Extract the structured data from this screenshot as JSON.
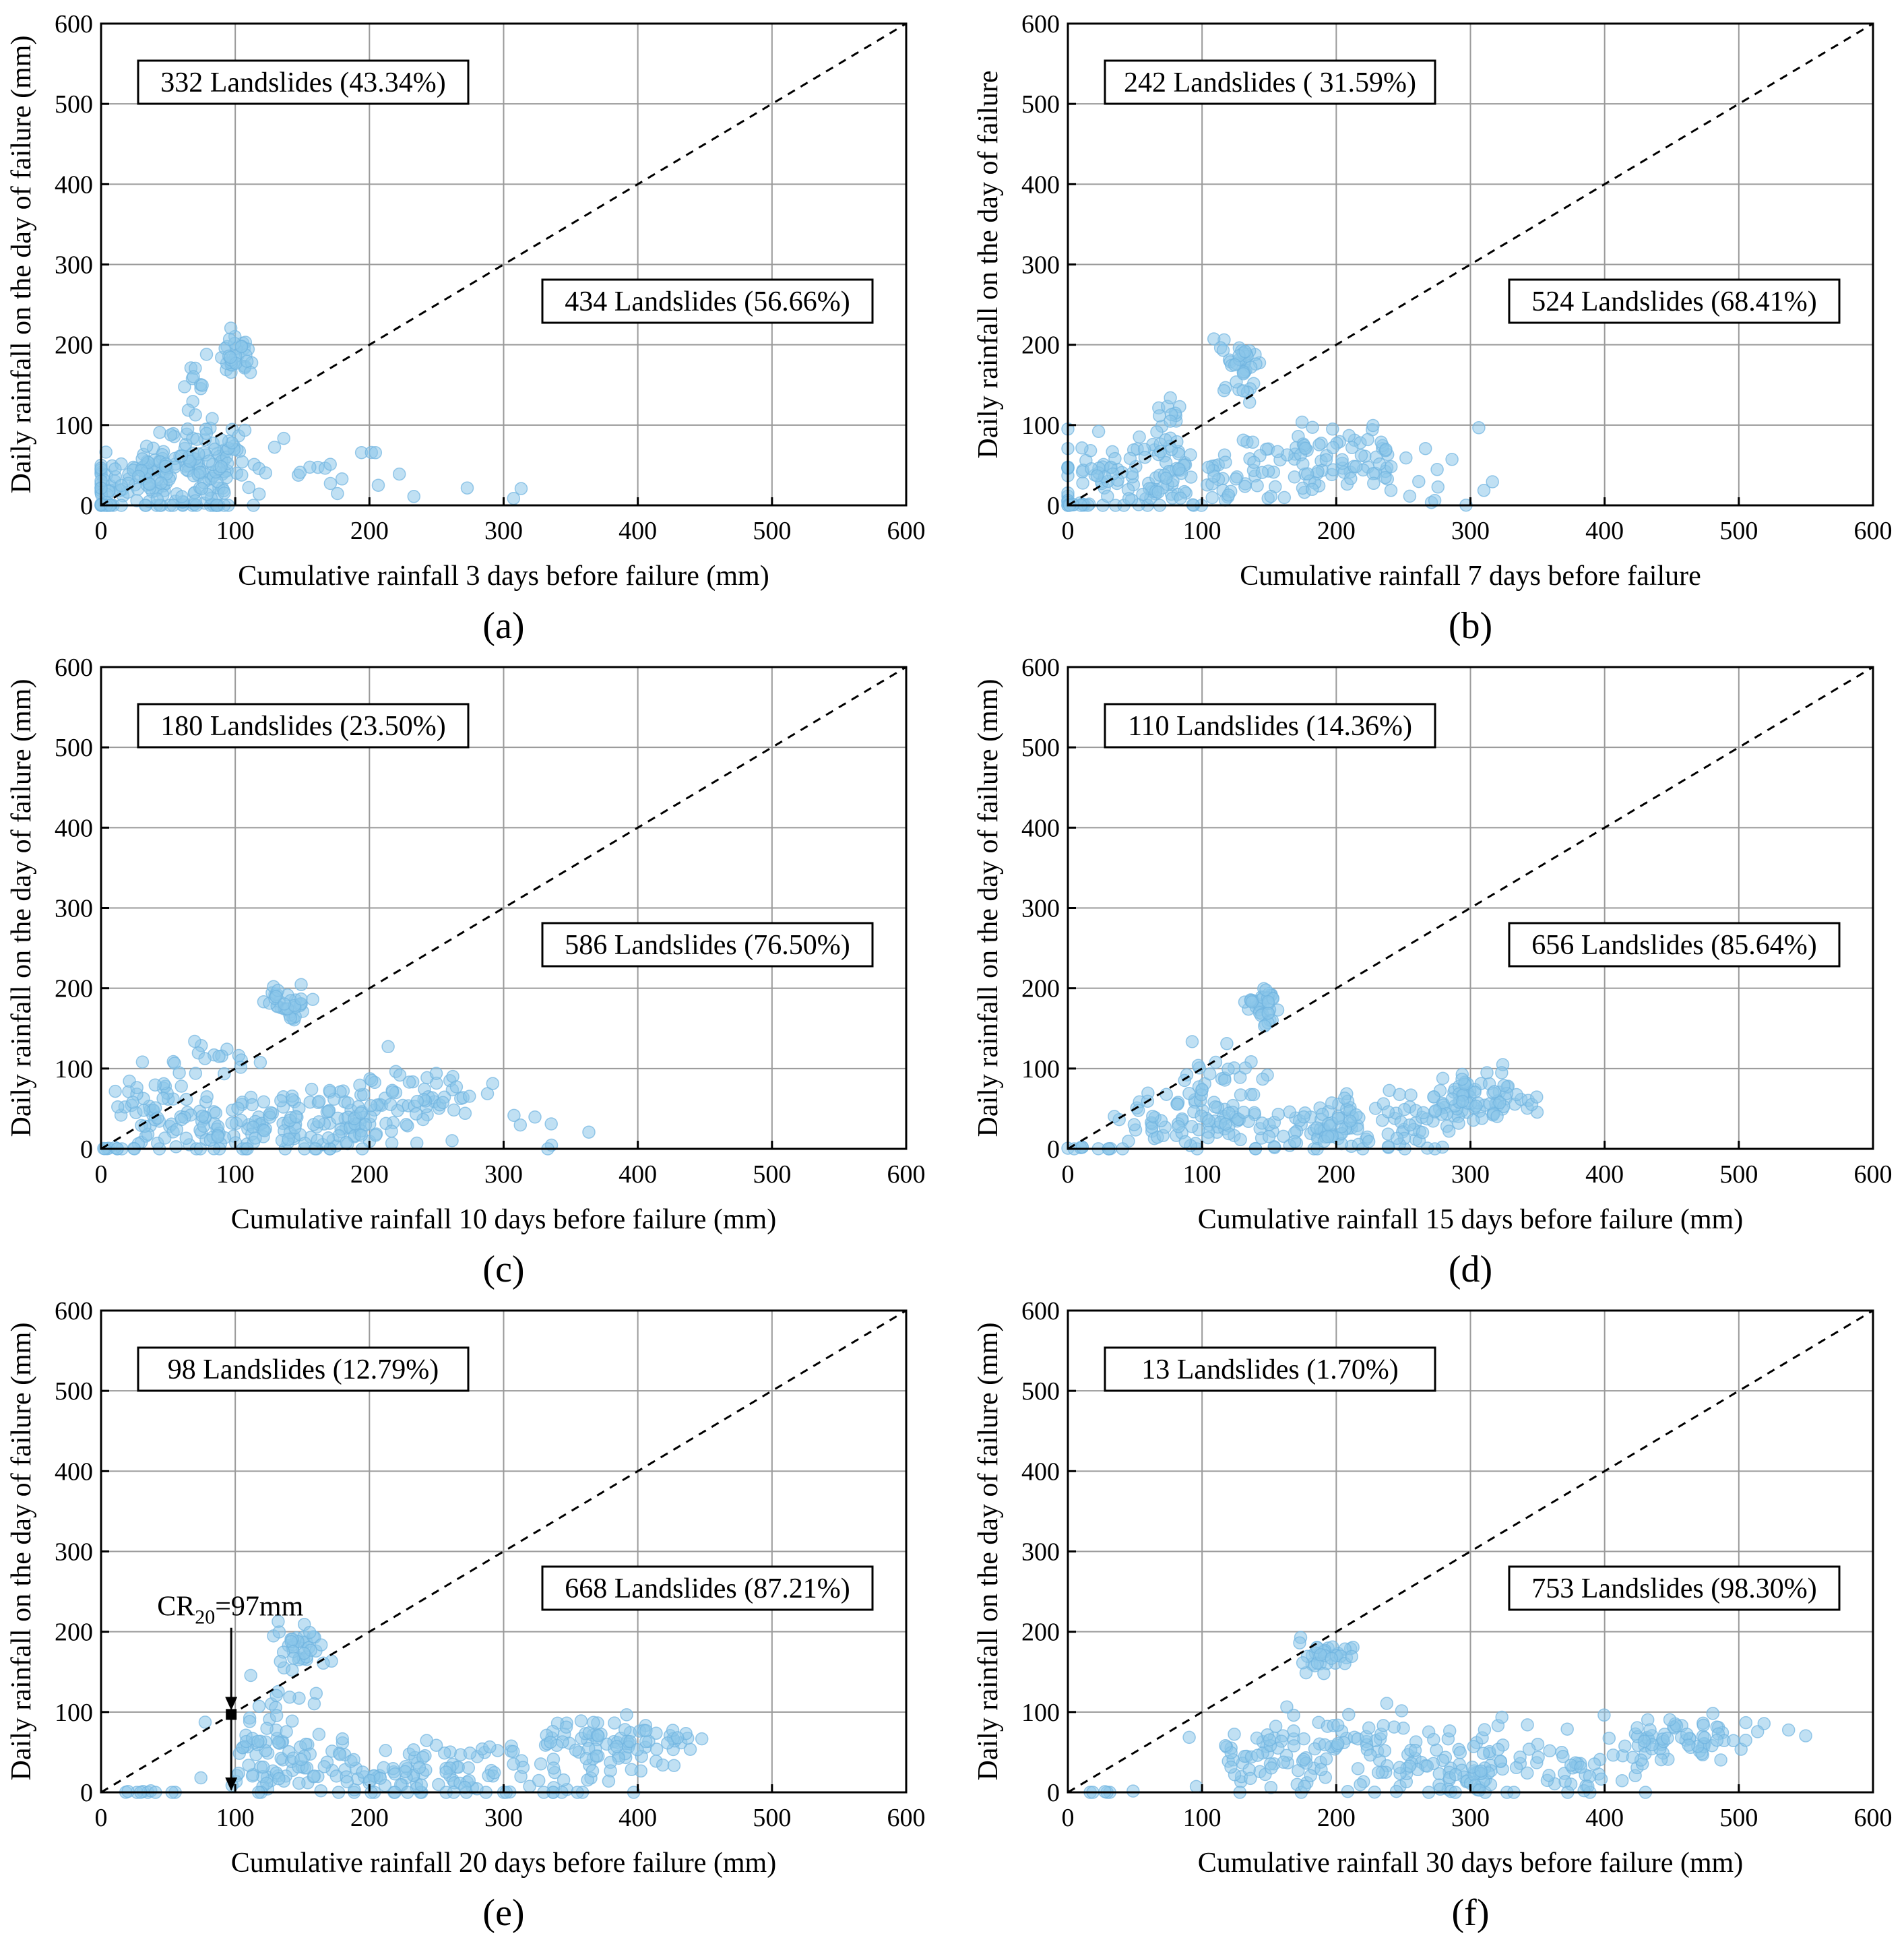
{
  "figure": {
    "colors": {
      "point_fill": "#8cc7ea",
      "point_stroke": "#6fb3df",
      "threshold": "#000000"
    }
  },
  "chart_data": [
    {
      "id": "a",
      "type": "scatter",
      "panel_label": "(a)",
      "xlabel": "Cumulative rainfall 3 days before failure (mm)",
      "ylabel": "Daily rainfall on the day of failure (mm)",
      "xlim": [
        0,
        600
      ],
      "ylim": [
        0,
        600
      ],
      "xticks": [
        0,
        100,
        200,
        300,
        400,
        500,
        600
      ],
      "yticks": [
        0,
        100,
        200,
        300,
        400,
        500,
        600
      ],
      "grid": true,
      "reference_line": {
        "from": [
          0,
          0
        ],
        "to": [
          600,
          600
        ],
        "style": "dashed"
      },
      "annotations": [
        {
          "text": "332 Landslides (43.34%)",
          "region": "above line"
        },
        {
          "text": "434 Landslides (56.66%)",
          "region": "below line"
        }
      ],
      "clusters": [
        {
          "cx": 40,
          "cy": 35,
          "sx": 30,
          "sy": 25,
          "n": 150
        },
        {
          "cx": 85,
          "cy": 50,
          "sx": 18,
          "sy": 25,
          "n": 70
        },
        {
          "cx": 100,
          "cy": 185,
          "sx": 6,
          "sy": 12,
          "n": 35
        },
        {
          "cx": 70,
          "cy": 145,
          "sx": 5,
          "sy": 20,
          "n": 12
        },
        {
          "cx": 180,
          "cy": 55,
          "sx": 30,
          "sy": 25,
          "n": 14
        },
        {
          "cx": 260,
          "cy": 20,
          "sx": 25,
          "sy": 15,
          "n": 6
        },
        {
          "cx": 10,
          "cy": 0,
          "sx": 10,
          "sy": 1,
          "n": 12
        }
      ]
    },
    {
      "id": "b",
      "type": "scatter",
      "panel_label": "(b)",
      "xlabel": "Cumulative rainfall 7 days before failure",
      "ylabel": "Daily rainfall on the day of failure",
      "xlim": [
        0,
        600
      ],
      "ylim": [
        0,
        600
      ],
      "xticks": [
        0,
        100,
        200,
        300,
        400,
        500,
        600
      ],
      "yticks": [
        0,
        100,
        200,
        300,
        400,
        500,
        600
      ],
      "grid": true,
      "reference_line": {
        "from": [
          0,
          0
        ],
        "to": [
          600,
          600
        ],
        "style": "dashed"
      },
      "annotations": [
        {
          "text": "242 Landslides ( 31.59%)",
          "region": "above line"
        },
        {
          "text": "524 Landslides (68.41%)",
          "region": "below line"
        }
      ],
      "clusters": [
        {
          "cx": 50,
          "cy": 40,
          "sx": 35,
          "sy": 25,
          "n": 120
        },
        {
          "cx": 130,
          "cy": 175,
          "sx": 8,
          "sy": 18,
          "n": 40
        },
        {
          "cx": 200,
          "cy": 60,
          "sx": 35,
          "sy": 22,
          "n": 80
        },
        {
          "cx": 130,
          "cy": 30,
          "sx": 25,
          "sy": 25,
          "n": 40
        },
        {
          "cx": 75,
          "cy": 115,
          "sx": 8,
          "sy": 8,
          "n": 10
        },
        {
          "cx": 300,
          "cy": 15,
          "sx": 30,
          "sy": 15,
          "n": 8
        },
        {
          "cx": 5,
          "cy": 0,
          "sx": 5,
          "sy": 1,
          "n": 10
        }
      ]
    },
    {
      "id": "c",
      "type": "scatter",
      "panel_label": "(c)",
      "xlabel": "Cumulative rainfall 10 days before failure (mm)",
      "ylabel": "Daily rainfall on the day of failure (mm)",
      "xlim": [
        0,
        600
      ],
      "ylim": [
        0,
        600
      ],
      "xticks": [
        0,
        100,
        200,
        300,
        400,
        500,
        600
      ],
      "yticks": [
        0,
        100,
        200,
        300,
        400,
        500,
        600
      ],
      "grid": true,
      "reference_line": {
        "from": [
          0,
          0
        ],
        "to": [
          600,
          600
        ],
        "style": "dashed"
      },
      "annotations": [
        {
          "text": "180 Landslides (23.50%)",
          "region": "above line"
        },
        {
          "text": "586 Landslides (76.50%)",
          "region": "below line"
        }
      ],
      "clusters": [
        {
          "cx": 40,
          "cy": 60,
          "sx": 15,
          "sy": 25,
          "n": 40
        },
        {
          "cx": 140,
          "cy": 180,
          "sx": 8,
          "sy": 12,
          "n": 35
        },
        {
          "cx": 160,
          "cy": 30,
          "sx": 40,
          "sy": 20,
          "n": 120
        },
        {
          "cx": 230,
          "cy": 65,
          "sx": 30,
          "sy": 18,
          "n": 60
        },
        {
          "cx": 90,
          "cy": 110,
          "sx": 15,
          "sy": 15,
          "n": 15
        },
        {
          "cx": 80,
          "cy": 25,
          "sx": 25,
          "sy": 20,
          "n": 50
        },
        {
          "cx": 320,
          "cy": 20,
          "sx": 25,
          "sy": 12,
          "n": 7
        },
        {
          "cx": 15,
          "cy": 0,
          "sx": 10,
          "sy": 1,
          "n": 10
        }
      ]
    },
    {
      "id": "d",
      "type": "scatter",
      "panel_label": "(d)",
      "xlabel": "Cumulative rainfall 15 days before failure (mm)",
      "ylabel": "Daily rainfall on the day of failure (mm)",
      "xlim": [
        0,
        600
      ],
      "ylim": [
        0,
        600
      ],
      "xticks": [
        0,
        100,
        200,
        300,
        400,
        500,
        600
      ],
      "yticks": [
        0,
        100,
        200,
        300,
        400,
        500,
        600
      ],
      "grid": true,
      "reference_line": {
        "from": [
          0,
          0
        ],
        "to": [
          600,
          600
        ],
        "style": "dashed"
      },
      "annotations": [
        {
          "text": "110 Landslides (14.36%)",
          "region": "above line"
        },
        {
          "text": "656 Landslides (85.64%)",
          "region": "below line"
        }
      ],
      "clusters": [
        {
          "cx": 100,
          "cy": 35,
          "sx": 30,
          "sy": 20,
          "n": 80
        },
        {
          "cx": 145,
          "cy": 175,
          "sx": 7,
          "sy": 14,
          "n": 35
        },
        {
          "cx": 200,
          "cy": 30,
          "sx": 35,
          "sy": 20,
          "n": 90
        },
        {
          "cx": 310,
          "cy": 65,
          "sx": 25,
          "sy": 15,
          "n": 70
        },
        {
          "cx": 110,
          "cy": 100,
          "sx": 20,
          "sy": 25,
          "n": 25
        },
        {
          "cx": 260,
          "cy": 40,
          "sx": 30,
          "sy": 25,
          "n": 40
        },
        {
          "cx": 15,
          "cy": 0,
          "sx": 10,
          "sy": 1,
          "n": 10
        }
      ]
    },
    {
      "id": "e",
      "type": "scatter",
      "panel_label": "(e)",
      "xlabel": "Cumulative rainfall 20 days before failure (mm)",
      "ylabel": "Daily rainfall on the day of failure (mm)",
      "xlim": [
        0,
        600
      ],
      "ylim": [
        0,
        600
      ],
      "xticks": [
        0,
        100,
        200,
        300,
        400,
        500,
        600
      ],
      "yticks": [
        0,
        100,
        200,
        300,
        400,
        500,
        600
      ],
      "grid": true,
      "reference_line": {
        "from": [
          0,
          0
        ],
        "to": [
          600,
          600
        ],
        "style": "dashed"
      },
      "annotations": [
        {
          "text": "98 Landslides (12.79%)",
          "region": "above line"
        },
        {
          "text": "668 Landslides (87.21%)",
          "region": "below line"
        }
      ],
      "threshold": {
        "label_main": "CR",
        "label_sub": "20",
        "label_value": "=97mm",
        "x": 97,
        "y": 97,
        "arrow_from_y": 205
      },
      "clusters": [
        {
          "cx": 130,
          "cy": 40,
          "sx": 25,
          "sy": 25,
          "n": 70
        },
        {
          "cx": 150,
          "cy": 180,
          "sx": 8,
          "sy": 14,
          "n": 35
        },
        {
          "cx": 230,
          "cy": 25,
          "sx": 40,
          "sy": 18,
          "n": 90
        },
        {
          "cx": 390,
          "cy": 65,
          "sx": 30,
          "sy": 15,
          "n": 70
        },
        {
          "cx": 320,
          "cy": 30,
          "sx": 45,
          "sy": 25,
          "n": 50
        },
        {
          "cx": 130,
          "cy": 110,
          "sx": 15,
          "sy": 25,
          "n": 20
        },
        {
          "cx": 30,
          "cy": 0,
          "sx": 20,
          "sy": 1,
          "n": 10
        }
      ]
    },
    {
      "id": "f",
      "type": "scatter",
      "panel_label": "(f)",
      "xlabel": "Cumulative rainfall 30 days before failure (mm)",
      "ylabel": "Daily rainfall on the day of failure (mm)",
      "xlim": [
        0,
        600
      ],
      "ylim": [
        0,
        600
      ],
      "xticks": [
        0,
        100,
        200,
        300,
        400,
        500,
        600
      ],
      "yticks": [
        0,
        100,
        200,
        300,
        400,
        500,
        600
      ],
      "grid": true,
      "reference_line": {
        "from": [
          0,
          0
        ],
        "to": [
          600,
          600
        ],
        "style": "dashed"
      },
      "annotations": [
        {
          "text": "13 Landslides (1.70%)",
          "region": "above line"
        },
        {
          "text": "753 Landslides (98.30%)",
          "region": "below line"
        }
      ],
      "clusters": [
        {
          "cx": 150,
          "cy": 40,
          "sx": 25,
          "sy": 25,
          "n": 60
        },
        {
          "cx": 195,
          "cy": 175,
          "sx": 10,
          "sy": 14,
          "n": 35
        },
        {
          "cx": 280,
          "cy": 35,
          "sx": 45,
          "sy": 25,
          "n": 120
        },
        {
          "cx": 460,
          "cy": 65,
          "sx": 30,
          "sy": 15,
          "n": 70
        },
        {
          "cx": 210,
          "cy": 80,
          "sx": 25,
          "sy": 20,
          "n": 25
        },
        {
          "cx": 380,
          "cy": 20,
          "sx": 30,
          "sy": 15,
          "n": 30
        },
        {
          "cx": 30,
          "cy": 0,
          "sx": 20,
          "sy": 1,
          "n": 6
        }
      ]
    }
  ]
}
